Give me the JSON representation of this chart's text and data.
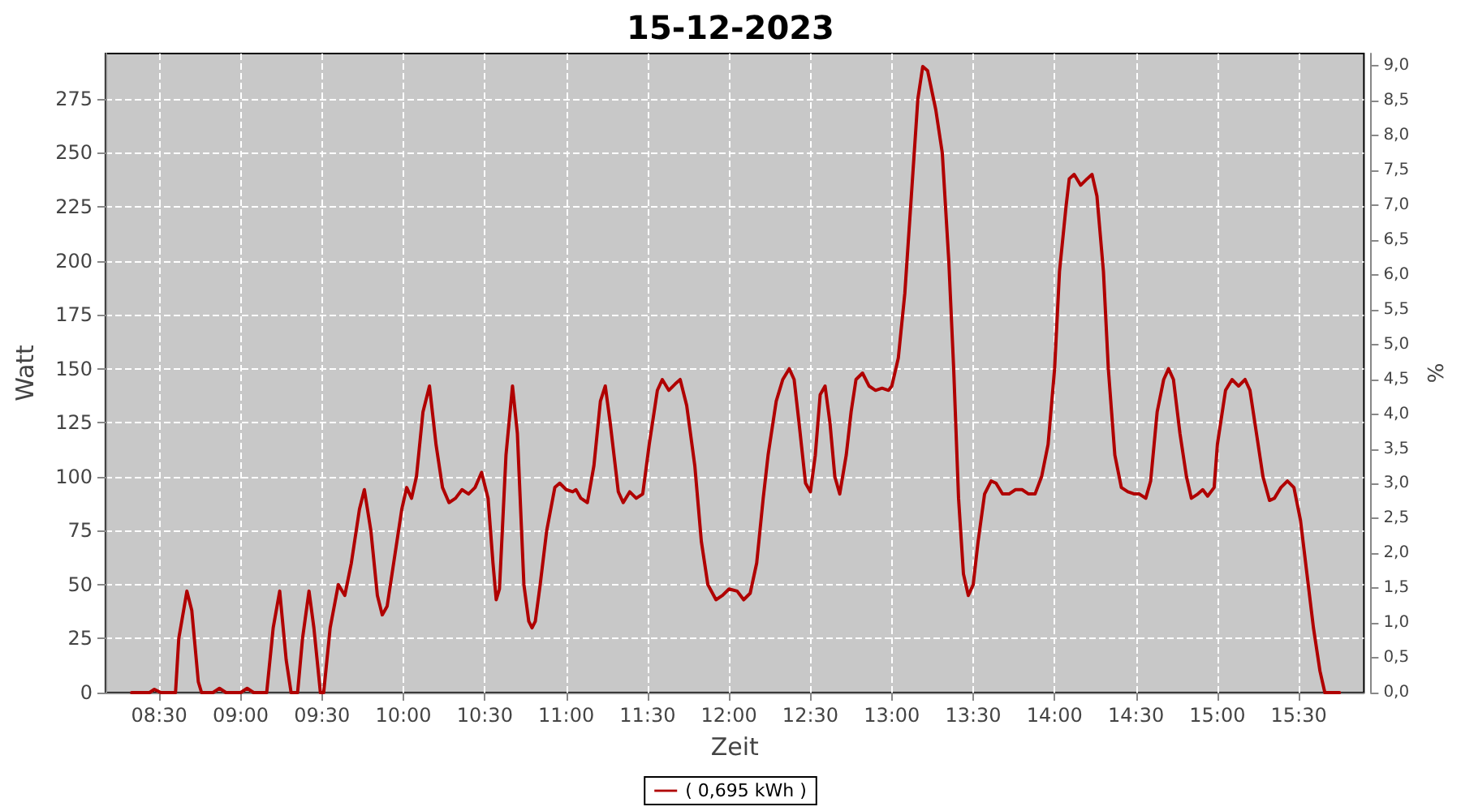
{
  "chart_data": {
    "type": "line",
    "title": "15-12-2023",
    "xlabel": "Zeit",
    "ylabel": "Watt",
    "y2label": "%",
    "xlim": [
      8.17,
      15.9
    ],
    "xticks": [
      {
        "value": 8.5,
        "label": "08:30"
      },
      {
        "value": 9,
        "label": "09:00"
      },
      {
        "value": 9.5,
        "label": "09:30"
      },
      {
        "value": 10,
        "label": "10:00"
      },
      {
        "value": 10.5,
        "label": "10:30"
      },
      {
        "value": 11,
        "label": "11:00"
      },
      {
        "value": 11.5,
        "label": "11:30"
      },
      {
        "value": 12,
        "label": "12:00"
      },
      {
        "value": 12.5,
        "label": "12:30"
      },
      {
        "value": 13,
        "label": "13:00"
      },
      {
        "value": 13.5,
        "label": "13:30"
      },
      {
        "value": 14,
        "label": "14:00"
      },
      {
        "value": 14.5,
        "label": "14:30"
      },
      {
        "value": 15,
        "label": "15:00"
      },
      {
        "value": 15.5,
        "label": "15:30"
      }
    ],
    "ylim": [
      0,
      296
    ],
    "yticks": [
      0,
      25,
      50,
      75,
      100,
      125,
      150,
      175,
      200,
      225,
      250,
      275
    ],
    "y2lim": [
      0,
      9.18
    ],
    "y2ticks": [
      {
        "value": 0,
        "label": "0,0"
      },
      {
        "value": 0.5,
        "label": "0,5"
      },
      {
        "value": 1,
        "label": "1,0"
      },
      {
        "value": 1.5,
        "label": "1,5"
      },
      {
        "value": 2,
        "label": "2,0"
      },
      {
        "value": 2.5,
        "label": "2,5"
      },
      {
        "value": 3,
        "label": "3,0"
      },
      {
        "value": 3.5,
        "label": "3,5"
      },
      {
        "value": 4,
        "label": "4,0"
      },
      {
        "value": 4.5,
        "label": "4,5"
      },
      {
        "value": 5,
        "label": "5,0"
      },
      {
        "value": 5.5,
        "label": "5,5"
      },
      {
        "value": 6,
        "label": "6,0"
      },
      {
        "value": 6.5,
        "label": "6,5"
      },
      {
        "value": 7,
        "label": "7,0"
      },
      {
        "value": 7.5,
        "label": "7,5"
      },
      {
        "value": 8,
        "label": "8,0"
      },
      {
        "value": 8.5,
        "label": "8,5"
      },
      {
        "value": 9,
        "label": "9,0"
      }
    ],
    "grid": true,
    "legend": "bottom",
    "marker": "none",
    "line_style": "solid",
    "series": [
      {
        "name": "( 0,695 kWh )",
        "color": "#b00000",
        "x": [
          8.33,
          8.44,
          8.47,
          8.51,
          8.6,
          8.62,
          8.67,
          8.7,
          8.74,
          8.76,
          8.83,
          8.87,
          8.91,
          9.0,
          9.04,
          9.08,
          9.16,
          9.2,
          9.24,
          9.28,
          9.31,
          9.35,
          9.38,
          9.42,
          9.45,
          9.49,
          9.51,
          9.55,
          9.6,
          9.64,
          9.68,
          9.73,
          9.76,
          9.8,
          9.84,
          9.87,
          9.9,
          9.94,
          9.99,
          10.02,
          10.05,
          10.08,
          10.12,
          10.16,
          10.2,
          10.24,
          10.28,
          10.32,
          10.36,
          10.4,
          10.44,
          10.48,
          10.52,
          10.55,
          10.57,
          10.59,
          10.63,
          10.67,
          10.7,
          10.74,
          10.77,
          10.79,
          10.81,
          10.84,
          10.88,
          10.93,
          10.96,
          11.0,
          11.04,
          11.06,
          11.09,
          11.13,
          11.17,
          11.21,
          11.24,
          11.27,
          11.32,
          11.35,
          11.39,
          11.43,
          11.47,
          11.51,
          11.56,
          11.59,
          11.63,
          11.67,
          11.7,
          11.74,
          11.79,
          11.83,
          11.87,
          11.92,
          11.96,
          12.0,
          12.05,
          12.09,
          12.13,
          12.17,
          12.21,
          12.24,
          12.29,
          12.33,
          12.37,
          12.4,
          12.43,
          12.47,
          12.5,
          12.53,
          12.56,
          12.59,
          12.62,
          12.65,
          12.68,
          12.72,
          12.75,
          12.78,
          12.82,
          12.86,
          12.9,
          12.94,
          12.98,
          13.0,
          13.04,
          13.08,
          13.12,
          13.16,
          13.19,
          13.22,
          13.27,
          13.31,
          13.35,
          13.38,
          13.41,
          13.44,
          13.47,
          13.5,
          13.53,
          13.57,
          13.61,
          13.64,
          13.68,
          13.72,
          13.76,
          13.8,
          13.84,
          13.88,
          13.92,
          13.96,
          14.0,
          14.03,
          14.07,
          14.09,
          14.12,
          14.16,
          14.2,
          14.23,
          14.26,
          14.3,
          14.33,
          14.37,
          14.41,
          14.45,
          14.49,
          14.52,
          14.56,
          14.59,
          14.63,
          14.67,
          14.7,
          14.73,
          14.77,
          14.81,
          14.84,
          14.88,
          14.91,
          14.94,
          14.98,
          15.0,
          15.05,
          15.09,
          15.13,
          15.17,
          15.2,
          15.24,
          15.28,
          15.32,
          15.35,
          15.39,
          15.43,
          15.47,
          15.51,
          15.55,
          15.59,
          15.63,
          15.66,
          15.75
        ],
        "values": [
          0,
          0,
          1.5,
          0,
          0,
          25,
          47,
          38,
          5,
          0,
          0,
          2,
          0,
          0,
          2,
          0,
          0,
          30,
          47,
          15,
          0,
          0,
          25,
          47,
          30,
          0,
          0,
          30,
          50,
          45,
          60,
          85,
          94,
          75,
          45,
          36,
          40,
          60,
          85,
          95,
          90,
          100,
          130,
          142,
          115,
          95,
          88,
          90,
          94,
          92,
          95,
          102,
          90,
          60,
          43,
          48,
          110,
          142,
          120,
          50,
          33,
          30,
          33,
          50,
          75,
          95,
          97,
          94,
          93,
          94,
          90,
          88,
          105,
          135,
          142,
          125,
          93,
          88,
          93,
          90,
          92,
          115,
          140,
          145,
          140,
          143,
          145,
          133,
          105,
          70,
          50,
          43,
          45,
          48,
          47,
          43,
          46,
          60,
          90,
          110,
          135,
          145,
          150,
          145,
          125,
          97,
          93,
          110,
          138,
          142,
          125,
          100,
          92,
          110,
          130,
          145,
          148,
          142,
          140,
          141,
          140,
          142,
          155,
          185,
          230,
          275,
          290,
          288,
          270,
          250,
          200,
          150,
          90,
          55,
          45,
          50,
          70,
          92,
          98,
          97,
          92,
          92,
          94,
          94,
          92,
          92,
          100,
          115,
          150,
          195,
          225,
          238,
          240,
          235,
          238,
          240,
          230,
          195,
          150,
          110,
          95,
          93,
          92,
          92,
          90,
          98,
          130,
          145,
          150,
          145,
          120,
          100,
          90,
          92,
          94,
          91,
          95,
          115,
          140,
          145,
          142,
          145,
          140,
          120,
          100,
          89,
          90,
          95,
          98,
          95,
          80,
          55,
          30,
          10,
          0,
          0
        ]
      }
    ]
  }
}
